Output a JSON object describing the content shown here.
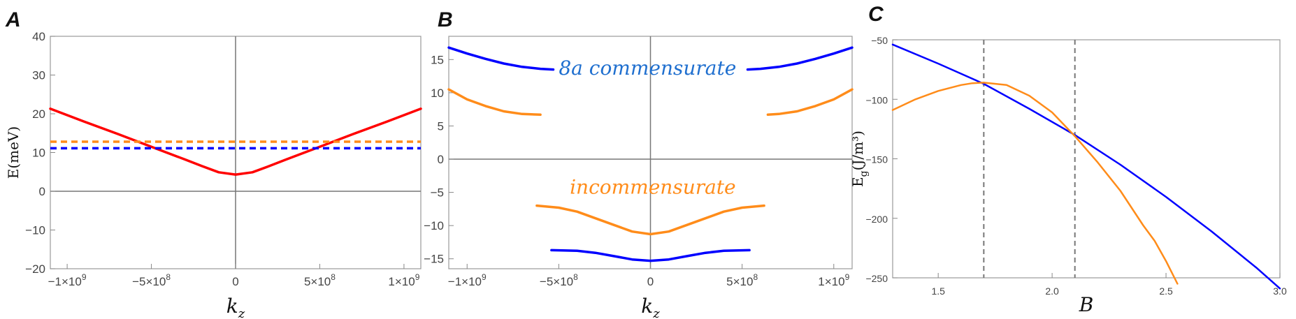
{
  "chart_data": [
    {
      "panel": "A",
      "type": "line",
      "xlabel": "k",
      "xlabel_sub": "z",
      "ylabel": "E(meV)",
      "xlim": [
        -1100000000.0,
        1100000000.0
      ],
      "ylim": [
        -20,
        40
      ],
      "xticks": [
        -1000000000.0,
        -500000000.0,
        0,
        500000000.0,
        1000000000.0
      ],
      "xtick_labels": [
        "−1×10",
        "−5×10",
        "0",
        "5×10",
        "1×10"
      ],
      "xtick_exps": [
        "9",
        "8",
        "",
        "8",
        "9"
      ],
      "yticks": [
        -20,
        -10,
        0,
        10,
        20,
        30,
        40
      ],
      "ytick_labels": [
        "−20",
        "−10",
        "0",
        "10",
        "20",
        "30",
        "40"
      ],
      "series": [
        {
          "color": "#ff0000",
          "style": "solid",
          "x": [
            -1100000000.0,
            -900000000.0,
            -700000000.0,
            -500000000.0,
            -300000000.0,
            -200000000.0,
            -100000000.0,
            0,
            100000000.0,
            200000000.0,
            300000000.0,
            500000000.0,
            700000000.0,
            900000000.0,
            1100000000.0
          ],
          "y": [
            21.3,
            18.0,
            14.8,
            11.5,
            8.2,
            6.5,
            4.9,
            4.3,
            4.9,
            6.5,
            8.2,
            11.5,
            14.8,
            18.0,
            21.3
          ]
        },
        {
          "color": "#ff8c1a",
          "style": "dashed",
          "x": [
            -1100000000.0,
            1100000000.0
          ],
          "y": [
            12.8,
            12.8
          ]
        },
        {
          "color": "#0000ff",
          "style": "dashed",
          "x": [
            -1100000000.0,
            1100000000.0
          ],
          "y": [
            11.1,
            11.1
          ]
        }
      ]
    },
    {
      "panel": "B",
      "type": "line",
      "xlabel": "k",
      "xlabel_sub": "z",
      "xlim": [
        -1100000000.0,
        1100000000.0
      ],
      "ylim": [
        -16.5,
        18.5
      ],
      "xticks": [
        -1000000000.0,
        -500000000.0,
        0,
        500000000.0,
        1000000000.0
      ],
      "xtick_labels": [
        "−1×10",
        "−5×10",
        "0",
        "5×10",
        "1×10"
      ],
      "xtick_exps": [
        "9",
        "8",
        "",
        "8",
        "9"
      ],
      "yticks": [
        -15,
        -10,
        -5,
        0,
        5,
        10,
        15
      ],
      "ytick_labels": [
        "−15",
        "−10",
        "−5",
        "0",
        "5",
        "10",
        "15"
      ],
      "annotations": [
        {
          "text": "8a commensurate",
          "x": -500000000.0,
          "y": 12.7,
          "color": "#1f6fcf"
        },
        {
          "text": "incommensurate",
          "x": -440000000.0,
          "y": -5.2,
          "color": "#ff8c1a"
        }
      ],
      "series": [
        {
          "color": "#0000ff",
          "x": [
            -1100000000.0,
            -1000000000.0,
            -900000000.0,
            -800000000.0,
            -700000000.0,
            -600000000.0,
            -530000000.0
          ],
          "y": [
            16.8,
            15.9,
            15.1,
            14.4,
            13.9,
            13.6,
            13.5
          ]
        },
        {
          "color": "#0000ff",
          "x": [
            530000000.0,
            600000000.0,
            700000000.0,
            800000000.0,
            900000000.0,
            1000000000.0,
            1100000000.0
          ],
          "y": [
            13.5,
            13.6,
            13.9,
            14.4,
            15.1,
            15.9,
            16.8
          ]
        },
        {
          "color": "#ff8c1a",
          "x": [
            -1100000000.0,
            -1000000000.0,
            -900000000.0,
            -800000000.0,
            -700000000.0,
            -600000000.0
          ],
          "y": [
            10.5,
            9.0,
            8.0,
            7.2,
            6.8,
            6.7
          ]
        },
        {
          "color": "#ff8c1a",
          "x": [
            640000000.0,
            700000000.0,
            800000000.0,
            900000000.0,
            1000000000.0,
            1100000000.0
          ],
          "y": [
            6.7,
            6.8,
            7.2,
            8.0,
            9.0,
            10.5
          ]
        },
        {
          "color": "#ff8c1a",
          "x": [
            -620000000.0,
            -500000000.0,
            -400000000.0,
            -300000000.0,
            -200000000.0,
            -100000000.0,
            0,
            100000000.0,
            200000000.0,
            300000000.0,
            400000000.0,
            500000000.0,
            620000000.0
          ],
          "y": [
            -7.0,
            -7.3,
            -7.9,
            -8.9,
            -9.9,
            -10.9,
            -11.3,
            -10.9,
            -9.9,
            -8.9,
            -7.9,
            -7.3,
            -7.0
          ]
        },
        {
          "color": "#0000ff",
          "x": [
            -540000000.0,
            -400000000.0,
            -300000000.0,
            -200000000.0,
            -100000000.0,
            0,
            100000000.0,
            200000000.0,
            300000000.0,
            400000000.0,
            540000000.0
          ],
          "y": [
            -13.7,
            -13.8,
            -14.1,
            -14.6,
            -15.1,
            -15.3,
            -15.1,
            -14.6,
            -14.1,
            -13.8,
            -13.7
          ]
        }
      ]
    },
    {
      "panel": "C",
      "type": "line",
      "xlabel": "B",
      "ylabel": "E",
      "ylabel_sub": "g",
      "ylabel_units": "(J/m³)",
      "xlim": [
        1.3,
        3.0
      ],
      "ylim": [
        -250,
        -50
      ],
      "xticks": [
        1.5,
        2.0,
        2.5,
        3.0
      ],
      "xtick_labels": [
        "1.5",
        "2.0",
        "2.5",
        "3.0"
      ],
      "yticks": [
        -250,
        -200,
        -150,
        -100,
        -50
      ],
      "ytick_labels": [
        "−250",
        "−200",
        "−150",
        "−100",
        "−50"
      ],
      "vlines": [
        1.7,
        2.1
      ],
      "series": [
        {
          "color": "#0000ff",
          "x": [
            1.3,
            1.5,
            1.7,
            1.9,
            2.1,
            2.3,
            2.5,
            2.7,
            2.9,
            3.0
          ],
          "y": [
            -54,
            -70,
            -87,
            -108,
            -130,
            -155,
            -182,
            -211,
            -242,
            -259
          ]
        },
        {
          "color": "#ff8c1a",
          "x": [
            1.3,
            1.4,
            1.5,
            1.6,
            1.65,
            1.7,
            1.8,
            1.9,
            2.0,
            2.1,
            2.2,
            2.3,
            2.4,
            2.45,
            2.5,
            2.55
          ],
          "y": [
            -109,
            -100,
            -93,
            -88,
            -86.5,
            -86,
            -88,
            -97,
            -111,
            -131,
            -153,
            -177,
            -206,
            -219,
            -236,
            -255
          ]
        }
      ]
    }
  ],
  "panels": {
    "a": "A",
    "b": "B",
    "c": "C"
  }
}
